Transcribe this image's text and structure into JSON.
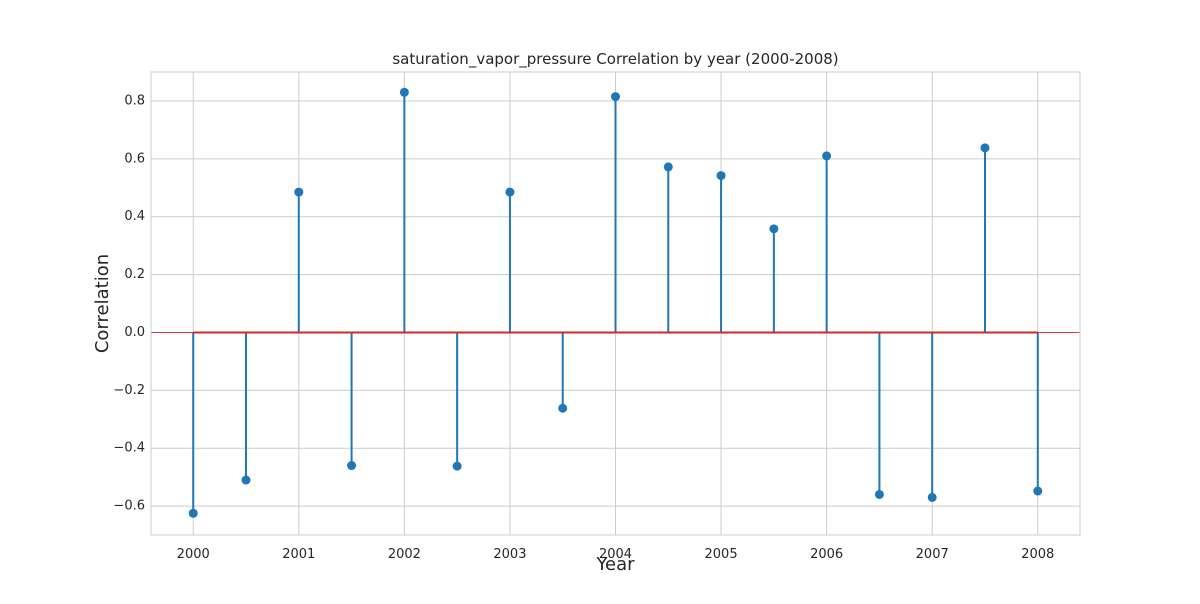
{
  "chart_data": {
    "type": "stem",
    "title": "saturation_vapor_pressure Correlation by year (2000-2008)",
    "xlabel": "Year",
    "ylabel": "Correlation",
    "x": [
      2000,
      2000.5,
      2001,
      2001.5,
      2002,
      2002.5,
      2003,
      2003.5,
      2004,
      2004.5,
      2005,
      2005.5,
      2006,
      2006.5,
      2007,
      2007.5,
      2008
    ],
    "values": [
      -0.625,
      -0.51,
      0.485,
      -0.46,
      0.83,
      -0.462,
      0.485,
      -0.262,
      0.815,
      0.572,
      0.542,
      0.358,
      0.61,
      -0.56,
      -0.57,
      0.638,
      -0.548
    ],
    "xlim": [
      1999.6,
      2008.4
    ],
    "ylim": [
      -0.7,
      0.9
    ],
    "xticks": [
      2000,
      2001,
      2002,
      2003,
      2004,
      2005,
      2006,
      2007,
      2008
    ],
    "yticks": [
      -0.6,
      -0.4,
      -0.2,
      0.0,
      0.2,
      0.4,
      0.6,
      0.8
    ],
    "ytick_labels": [
      "−0.6",
      "−0.4",
      "−0.2",
      "0.0",
      "0.2",
      "0.4",
      "0.6",
      "0.8"
    ],
    "baseline": 0.0,
    "grid": true,
    "colors": {
      "stem": "#1f77b4",
      "marker": "#1f77b4",
      "baseline": "#d62728"
    }
  }
}
